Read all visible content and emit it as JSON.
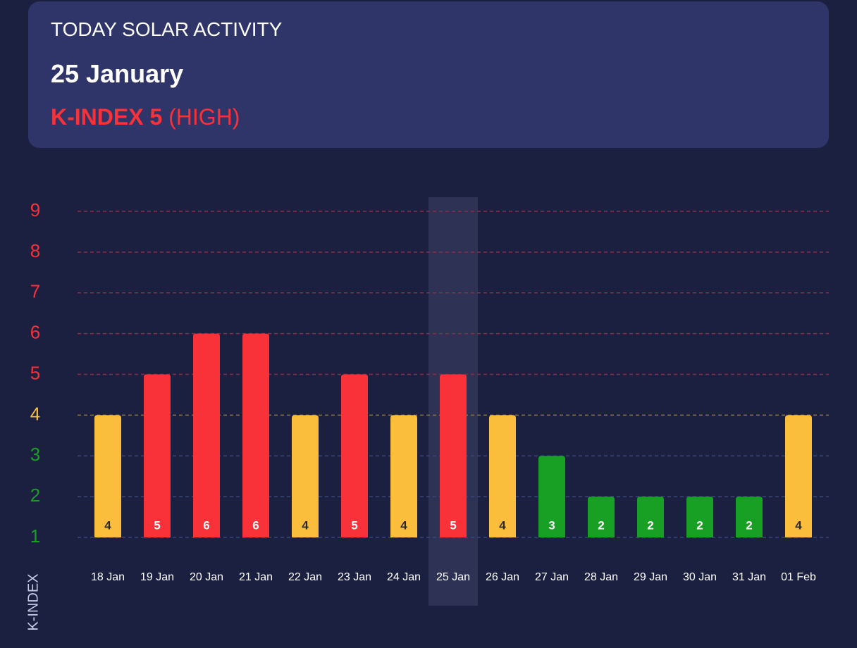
{
  "header": {
    "title": "TODAY SOLAR ACTIVITY",
    "date": "25 January",
    "kindex": "K-INDEX 5",
    "level": "(HIGH)"
  },
  "chart_data": {
    "type": "bar",
    "y_label": "K-INDEX",
    "categories": [
      "18 Jan",
      "19 Jan",
      "20 Jan",
      "21 Jan",
      "22 Jan",
      "23 Jan",
      "24 Jan",
      "25 Jan",
      "26 Jan",
      "27 Jan",
      "28 Jan",
      "29 Jan",
      "30 Jan",
      "31 Jan",
      "01 Feb"
    ],
    "values": [
      4,
      5,
      6,
      6,
      4,
      5,
      4,
      5,
      4,
      3,
      2,
      2,
      2,
      2,
      4
    ],
    "colors": [
      "#fbbd3c",
      "#f93138",
      "#f93138",
      "#f93138",
      "#fbbd3c",
      "#f93138",
      "#fbbd3c",
      "#f93138",
      "#fbbd3c",
      "#18a024",
      "#18a024",
      "#18a024",
      "#18a024",
      "#18a024",
      "#fbbd3c"
    ],
    "value_label_colors": [
      "#2a2a2a",
      "#ffffff",
      "#ffffff",
      "#ffffff",
      "#2a2a2a",
      "#ffffff",
      "#2a2a2a",
      "#ffffff",
      "#2a2a2a",
      "#ffffff",
      "#ffffff",
      "#ffffff",
      "#ffffff",
      "#ffffff",
      "#2a2a2a"
    ],
    "highlight_index": 7,
    "ylim": [
      1,
      9
    ],
    "yticks": [
      1,
      2,
      3,
      4,
      5,
      6,
      7,
      8,
      9
    ],
    "ytick_colors": [
      "#18a024",
      "#18a024",
      "#18a024",
      "#fbbd3c",
      "#f93138",
      "#f93138",
      "#f93138",
      "#f93138",
      "#f93138"
    ],
    "grid_colors": [
      "#3a4678",
      "#3a4678",
      "#3a4678",
      "#8a7444",
      "#8a2c46",
      "#8a2c46",
      "#8a2c46",
      "#8a2c46",
      "#8a2c46"
    ],
    "grid": true
  }
}
